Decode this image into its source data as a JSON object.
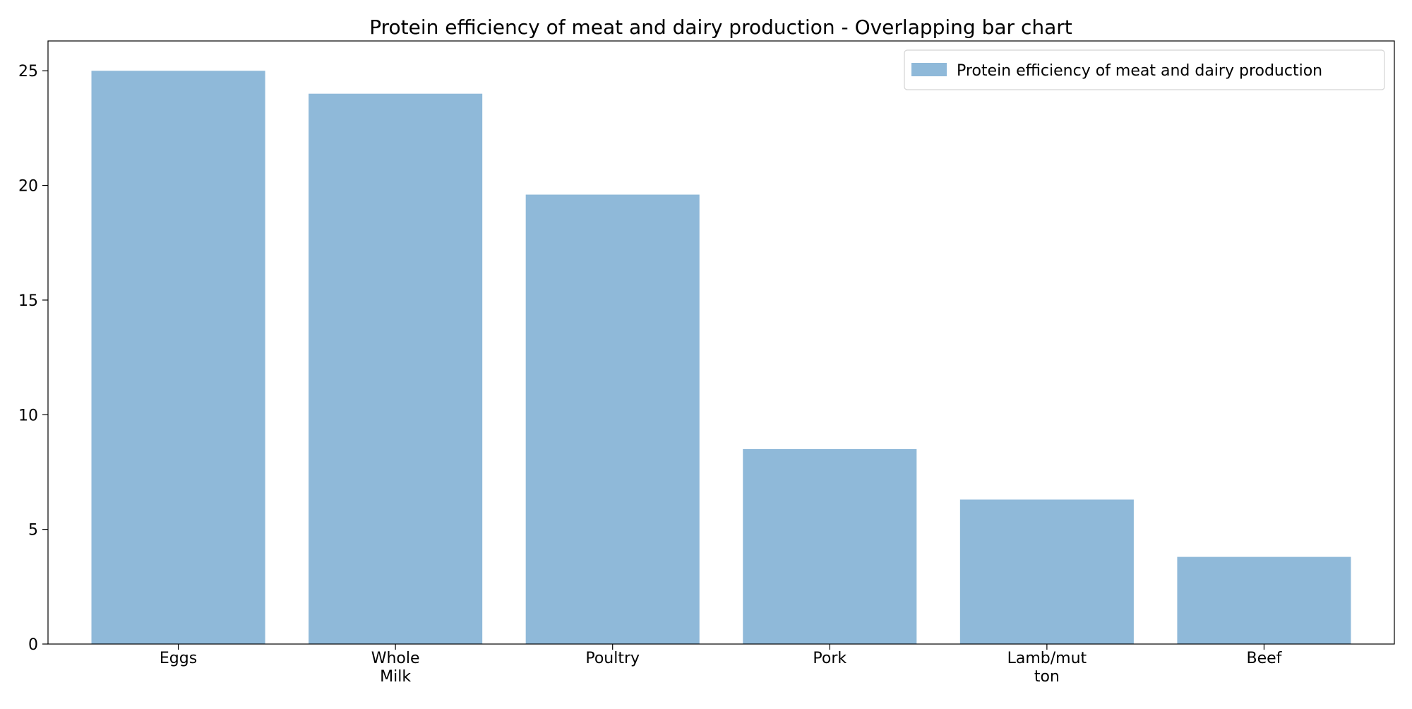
{
  "chart_data": {
    "type": "bar",
    "title": "Protein efficiency of meat and dairy production - Overlapping bar chart",
    "categories": [
      [
        "Eggs"
      ],
      [
        "Whole",
        "Milk"
      ],
      [
        "Poultry"
      ],
      [
        "Pork"
      ],
      [
        "Lamb/mut",
        "ton"
      ],
      [
        "Beef"
      ]
    ],
    "series": [
      {
        "name": "Protein efficiency of meat and dairy production",
        "values": [
          25.0,
          24.0,
          19.6,
          8.5,
          6.3,
          3.8
        ],
        "color": "#8fb9d9"
      }
    ],
    "yticks": [
      0,
      5,
      10,
      15,
      20,
      25
    ],
    "ylim": [
      0,
      26.3
    ],
    "grid": false,
    "legend_position": "top-right"
  }
}
